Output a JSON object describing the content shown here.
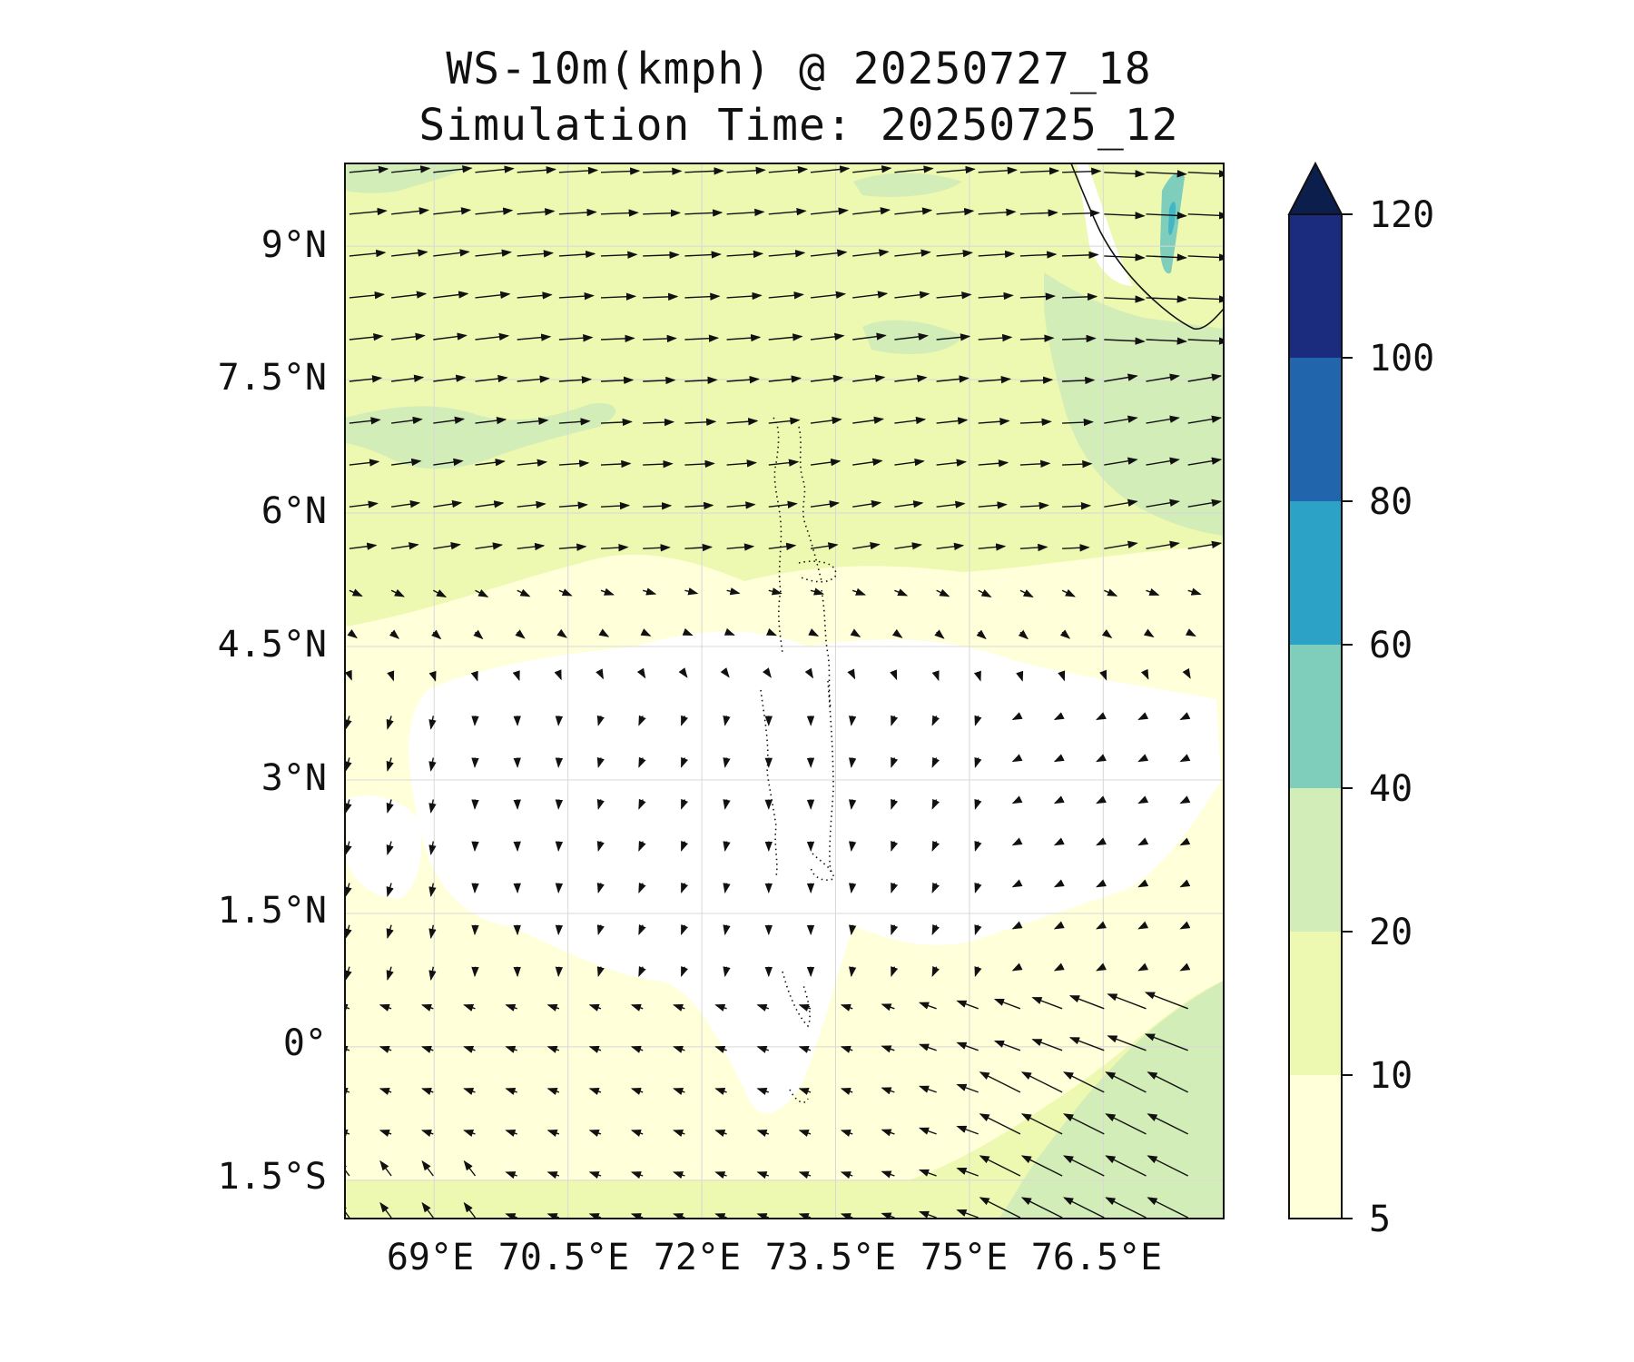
{
  "title": {
    "line1": "WS-10m(kmph) @ 20250727_18",
    "line2": "Simulation Time: 20250725_12"
  },
  "map": {
    "extent": {
      "lon_min": 68.0,
      "lon_max": 77.85,
      "lat_min": -1.93,
      "lat_max": 9.93
    },
    "lat_ticks": [
      {
        "value": 9.0,
        "label": "9°N"
      },
      {
        "value": 7.5,
        "label": "7.5°N"
      },
      {
        "value": 6.0,
        "label": "6°N"
      },
      {
        "value": 4.5,
        "label": "4.5°N"
      },
      {
        "value": 3.0,
        "label": "3°N"
      },
      {
        "value": 1.5,
        "label": "1.5°N"
      },
      {
        "value": 0.0,
        "label": "0°"
      },
      {
        "value": -1.5,
        "label": "1.5°S"
      }
    ],
    "lon_ticks": [
      {
        "value": 69.0,
        "label": "69°E"
      },
      {
        "value": 70.5,
        "label": "70.5°E"
      },
      {
        "value": 72.0,
        "label": "72°E"
      },
      {
        "value": 73.5,
        "label": "73.5°E"
      },
      {
        "value": 75.0,
        "label": "75°E"
      },
      {
        "value": 76.5,
        "label": "76.5°E"
      }
    ],
    "gridlines": true,
    "vector_field": "10 m wind direction arrows; westerly in north, weak/variable near equator, strong northwesterly (toward SE quadrant is easterly-southeasterly flow) in south-east"
  },
  "colorbar": {
    "levels": [
      5,
      10,
      20,
      40,
      60,
      80,
      100,
      120
    ],
    "labels": [
      "5",
      "10",
      "20",
      "40",
      "60",
      "80",
      "100",
      "120"
    ],
    "colors": [
      "#ffffd9",
      "#edf8b1",
      "#c7e9b4",
      "#7fcdbb",
      "#2ca3c6",
      "#2166ac",
      "#1b2c7e"
    ],
    "extend_color": "#0b1e4c",
    "extend": "max"
  },
  "colors": {
    "c5_10": "#ffffd9",
    "c10_20": "#edf8b1",
    "c20_40": "#d2edb8",
    "c40_60": "#7fcdbb",
    "c60_80": "#41b6c4",
    "below5": "#ffffff",
    "arrow": "#111111",
    "coast": "#111111"
  }
}
